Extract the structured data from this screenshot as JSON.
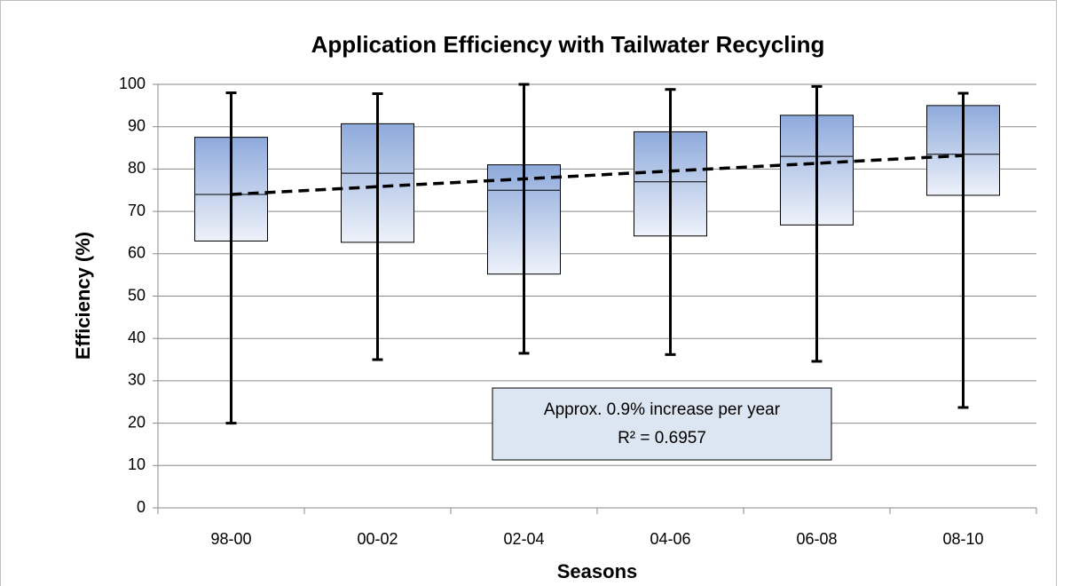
{
  "chart_data": {
    "type": "box",
    "title": "Application Efficiency with Tailwater Recycling",
    "x_label": "Seasons",
    "y_label": "Efficiency (%)",
    "categories": [
      "98-00",
      "00-02",
      "02-04",
      "04-06",
      "06-08",
      "08-10"
    ],
    "boxes": [
      {
        "min": 20,
        "q1": 63,
        "median": 74,
        "q3": 87.5,
        "max": 98
      },
      {
        "min": 35,
        "q1": 62.7,
        "median": 79,
        "q3": 90.7,
        "max": 97.8
      },
      {
        "min": 36.5,
        "q1": 55.2,
        "median": 75,
        "q3": 81,
        "max": 100
      },
      {
        "min": 36.2,
        "q1": 64.2,
        "median": 77,
        "q3": 88.8,
        "max": 98.8
      },
      {
        "min": 34.6,
        "q1": 66.8,
        "median": 83,
        "q3": 92.7,
        "max": 99.5
      },
      {
        "min": 23.7,
        "q1": 73.8,
        "median": 83.5,
        "q3": 95,
        "max": 97.9
      }
    ],
    "trend": [
      74,
      83.2
    ],
    "annotation": [
      "Approx. 0.9% increase per year",
      "R² = 0.6957"
    ],
    "ylim": [
      0,
      100
    ],
    "yticks": [
      0,
      10,
      20,
      30,
      40,
      50,
      60,
      70,
      80,
      90,
      100
    ],
    "grid": true,
    "box_color_top": "#8eaadb",
    "box_color_bottom": "#eef2fa"
  }
}
